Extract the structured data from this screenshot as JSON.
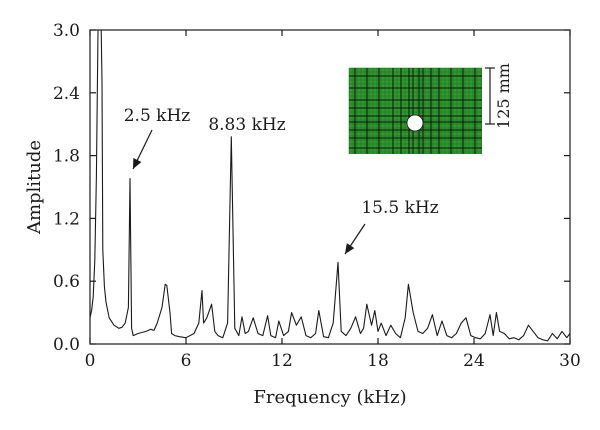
{
  "chart_data": {
    "type": "line",
    "title": "",
    "xlabel": "Frequency (kHz)",
    "ylabel": "Amplitude",
    "xlim": [
      0,
      30
    ],
    "ylim": [
      0,
      3.0
    ],
    "xticks": [
      0,
      6,
      12,
      18,
      24,
      30
    ],
    "xtick_labels": [
      "0",
      "6",
      "12",
      "18",
      "24",
      "30"
    ],
    "yticks": [
      0.0,
      0.6,
      1.2,
      1.8,
      2.4,
      3.0
    ],
    "ytick_labels": [
      "0.0",
      "0.6",
      "1.2",
      "1.8",
      "2.4",
      "3.0"
    ],
    "grid": false,
    "line_color": "#1a1a1a",
    "series": [
      {
        "x": [
          0.0,
          0.1,
          0.2,
          0.3,
          0.4,
          0.5,
          0.55,
          0.6,
          0.7,
          0.75,
          0.8,
          0.9,
          1.0,
          1.2,
          1.5,
          1.8,
          2.0,
          2.2,
          2.4,
          2.5,
          2.6,
          2.7,
          3.0,
          3.5,
          3.8,
          4.0,
          4.2,
          4.5,
          4.7,
          4.8,
          5.0,
          5.1,
          5.3,
          5.6,
          6.0,
          6.5,
          6.8,
          7.0,
          7.1,
          7.3,
          7.6,
          7.8,
          8.0,
          8.3,
          8.6,
          8.83,
          9.05,
          9.3,
          9.5,
          9.7,
          9.9,
          10.2,
          10.5,
          10.8,
          11.1,
          11.3,
          11.6,
          11.8,
          12.1,
          12.4,
          12.6,
          12.9,
          13.2,
          13.5,
          13.8,
          14.1,
          14.3,
          14.6,
          14.9,
          15.2,
          15.5,
          15.7,
          16.0,
          16.3,
          16.6,
          16.9,
          17.1,
          17.3,
          17.6,
          17.8,
          18.0,
          18.2,
          18.5,
          18.8,
          19.1,
          19.4,
          19.7,
          19.9,
          20.2,
          20.5,
          20.8,
          21.1,
          21.4,
          21.7,
          22.0,
          22.3,
          22.6,
          22.9,
          23.2,
          23.5,
          23.8,
          24.1,
          24.4,
          24.7,
          25.0,
          25.2,
          25.4,
          25.6,
          25.9,
          26.2,
          26.5,
          26.8,
          27.1,
          27.4,
          27.7,
          28.0,
          28.3,
          28.6,
          28.9,
          29.2,
          29.5,
          29.8,
          30.0
        ],
        "y": [
          0.25,
          0.32,
          0.45,
          0.8,
          1.6,
          3.0,
          3.0,
          3.0,
          3.0,
          2.5,
          0.9,
          0.55,
          0.4,
          0.25,
          0.18,
          0.15,
          0.16,
          0.2,
          0.35,
          1.58,
          0.15,
          0.08,
          0.1,
          0.12,
          0.14,
          0.13,
          0.2,
          0.35,
          0.57,
          0.56,
          0.3,
          0.1,
          0.08,
          0.07,
          0.06,
          0.1,
          0.2,
          0.51,
          0.2,
          0.25,
          0.38,
          0.12,
          0.08,
          0.06,
          0.2,
          1.98,
          0.15,
          0.08,
          0.26,
          0.1,
          0.12,
          0.25,
          0.1,
          0.08,
          0.27,
          0.08,
          0.06,
          0.22,
          0.08,
          0.12,
          0.3,
          0.18,
          0.26,
          0.08,
          0.06,
          0.1,
          0.32,
          0.07,
          0.06,
          0.2,
          0.78,
          0.12,
          0.08,
          0.15,
          0.26,
          0.1,
          0.15,
          0.38,
          0.18,
          0.32,
          0.12,
          0.2,
          0.08,
          0.18,
          0.1,
          0.06,
          0.25,
          0.57,
          0.3,
          0.12,
          0.1,
          0.15,
          0.28,
          0.08,
          0.22,
          0.08,
          0.06,
          0.1,
          0.2,
          0.25,
          0.08,
          0.06,
          0.05,
          0.1,
          0.28,
          0.08,
          0.3,
          0.12,
          0.1,
          0.05,
          0.06,
          0.04,
          0.08,
          0.18,
          0.12,
          0.06,
          0.04,
          0.03,
          0.1,
          0.05,
          0.12,
          0.06,
          0.1
        ]
      }
    ],
    "annotations": [
      {
        "text": "2.5 kHz",
        "x": 2.5,
        "y": 1.58,
        "arrow": true
      },
      {
        "text": "8.83 kHz",
        "x": 8.83,
        "y": 1.98,
        "arrow": false
      },
      {
        "text": "15.5 kHz",
        "x": 15.5,
        "y": 0.78,
        "arrow": true
      }
    ],
    "inset": {
      "mesh_color": "#2e9a2e",
      "grid_line_color": "#111111",
      "hole_color": "#ffffff",
      "dimension_label": "125 mm"
    }
  }
}
